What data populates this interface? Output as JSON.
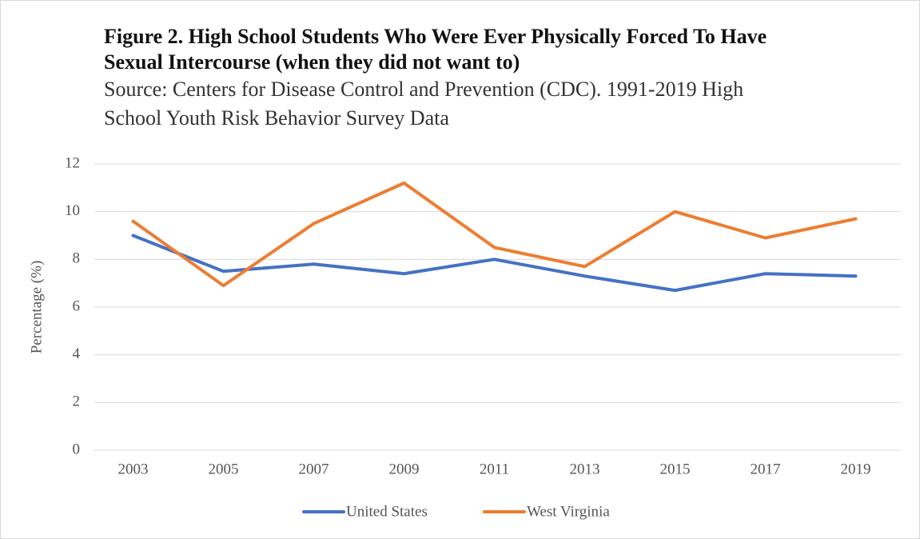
{
  "chart_data": {
    "type": "line",
    "title": "Figure 2. High School Students Who Were Ever Physically Forced To Have Sexual Intercourse (when they did not want to)",
    "subtitle": "Source: Centers for Disease Control and Prevention (CDC). 1991-2019 High School Youth Risk Behavior Survey Data",
    "y_label": "Percentage (%)",
    "categories": [
      "2003",
      "2005",
      "2007",
      "2009",
      "2011",
      "2013",
      "2015",
      "2017",
      "2019"
    ],
    "series": [
      {
        "name": "United States",
        "color": "#4472c4",
        "values": [
          9.0,
          7.5,
          7.8,
          7.4,
          8.0,
          7.3,
          6.7,
          7.4,
          7.3
        ]
      },
      {
        "name": "West Virginia",
        "color": "#ed7d31",
        "values": [
          9.6,
          6.9,
          9.5,
          11.2,
          8.5,
          7.7,
          10.0,
          8.9,
          9.7
        ]
      }
    ],
    "ylim": [
      0,
      12
    ],
    "yticks": [
      0,
      2,
      4,
      6,
      8,
      10,
      12
    ],
    "grid": true,
    "legend": "bottom"
  }
}
